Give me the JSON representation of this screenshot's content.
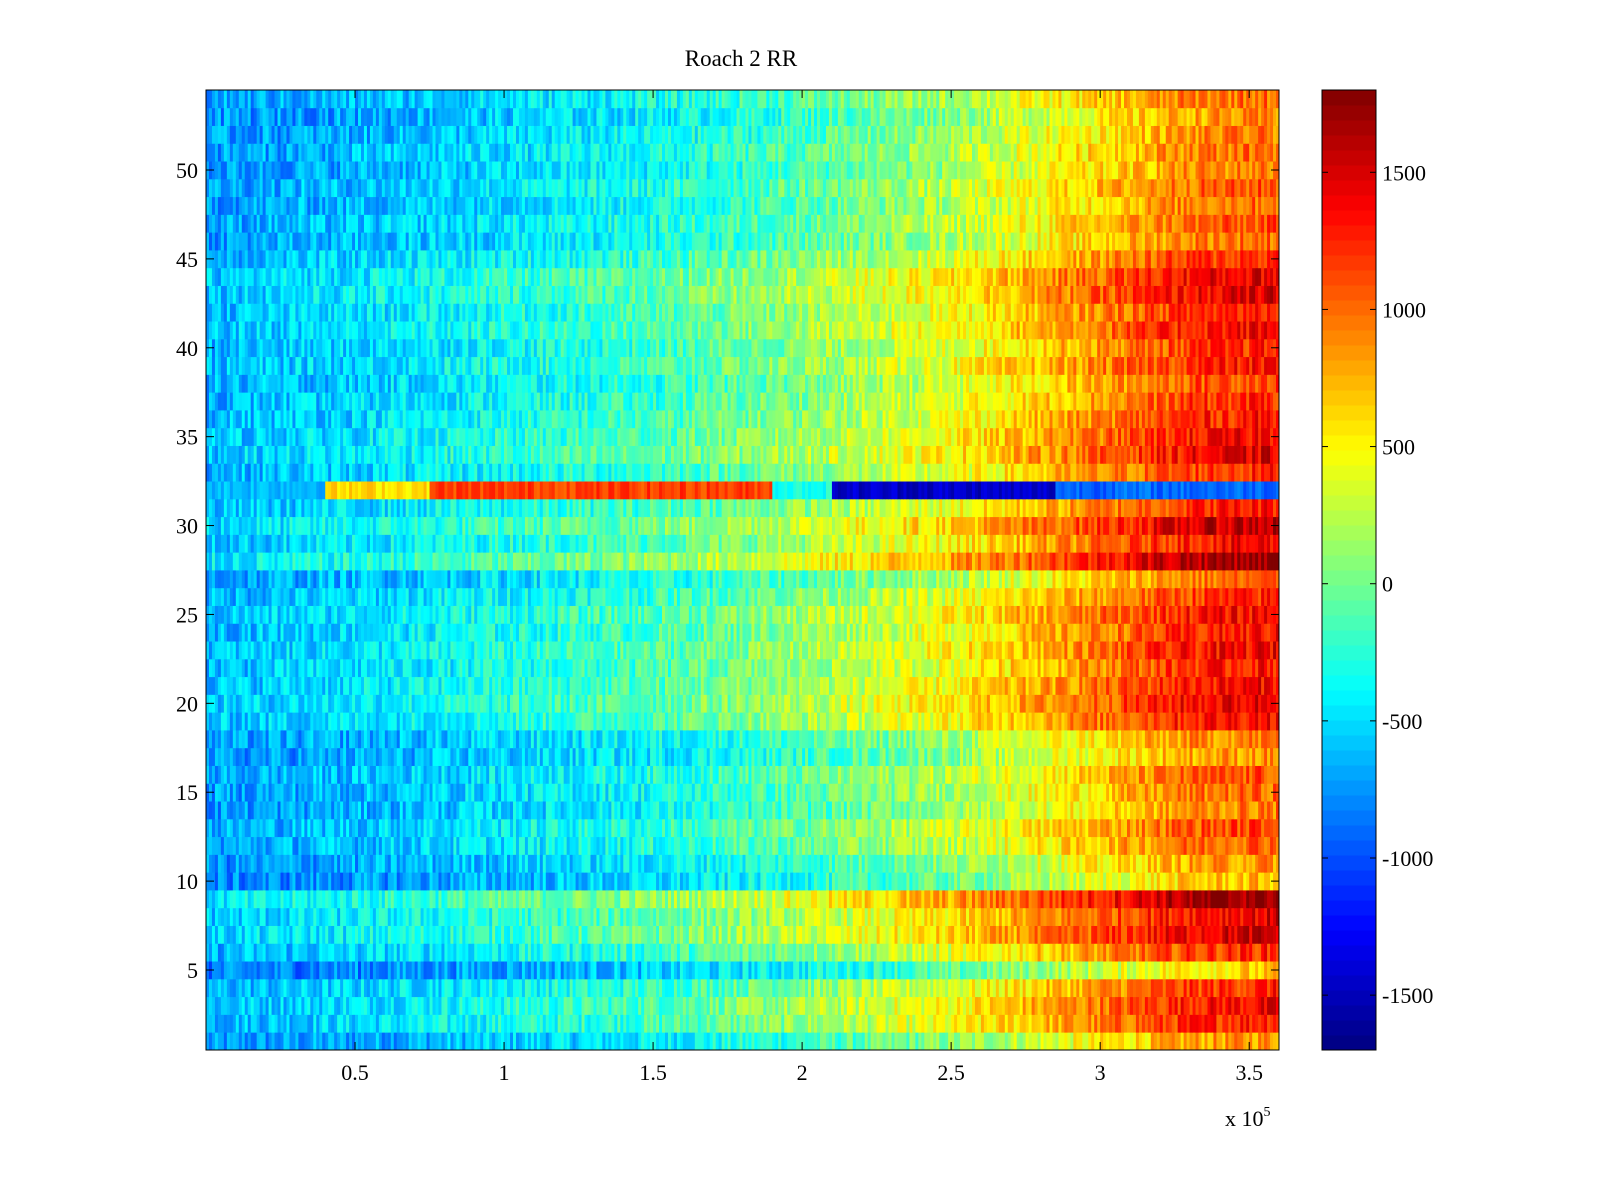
{
  "chart_data": {
    "type": "heatmap",
    "title": "Roach 2 RR",
    "xlabel": "",
    "ylabel": "",
    "x_exponent_label": "x 10",
    "x_exponent_sup": "5",
    "xlim": [
      0,
      3.6
    ],
    "ylim": [
      0.5,
      54.5
    ],
    "x_ticks": [
      0.5,
      1,
      1.5,
      2,
      2.5,
      3,
      3.5
    ],
    "x_tick_labels": [
      "0.5",
      "1",
      "1.5",
      "2",
      "2.5",
      "3",
      "3.5"
    ],
    "y_ticks": [
      5,
      10,
      15,
      20,
      25,
      30,
      35,
      40,
      45,
      50
    ],
    "y_tick_labels": [
      "5",
      "10",
      "15",
      "20",
      "25",
      "30",
      "35",
      "40",
      "45",
      "50"
    ],
    "rows": 54,
    "x_samples": 360,
    "colormap": "jet",
    "clim": [
      -1700,
      1800
    ],
    "colorbar": {
      "ticks": [
        -1500,
        -1000,
        -500,
        0,
        500,
        1000,
        1500
      ],
      "tick_labels": [
        "-1500",
        "-1000",
        "-500",
        "0",
        "500",
        "1000",
        "1500"
      ]
    },
    "trend_profile": {
      "x": [
        0,
        0.5,
        1,
        1.5,
        2,
        2.5,
        3,
        3.3,
        3.6
      ],
      "value": [
        -700,
        -600,
        -450,
        -300,
        -50,
        250,
        700,
        1000,
        1100
      ]
    },
    "row_offsets": [
      {
        "row": 1,
        "offset": -150
      },
      {
        "row": 2,
        "offset": 150
      },
      {
        "row": 3,
        "offset": 200
      },
      {
        "row": 4,
        "offset": 100
      },
      {
        "row": 5,
        "offset": -300
      },
      {
        "row": 6,
        "offset": 100
      },
      {
        "row": 7,
        "offset": 300
      },
      {
        "row": 8,
        "offset": 250
      },
      {
        "row": 9,
        "offset": 450
      },
      {
        "row": 10,
        "offset": -250
      },
      {
        "row": 11,
        "offset": -150
      },
      {
        "row": 12,
        "offset": 0
      },
      {
        "row": 13,
        "offset": 50
      },
      {
        "row": 14,
        "offset": -100
      },
      {
        "row": 15,
        "offset": -50
      },
      {
        "row": 16,
        "offset": 0
      },
      {
        "row": 17,
        "offset": -150
      },
      {
        "row": 18,
        "offset": -100
      },
      {
        "row": 19,
        "offset": 200
      },
      {
        "row": 20,
        "offset": 250
      },
      {
        "row": 21,
        "offset": 200
      },
      {
        "row": 22,
        "offset": 150
      },
      {
        "row": 23,
        "offset": 200
      },
      {
        "row": 24,
        "offset": 150
      },
      {
        "row": 25,
        "offset": 200
      },
      {
        "row": 26,
        "offset": 100
      },
      {
        "row": 27,
        "offset": -50
      },
      {
        "row": 28,
        "offset": 450
      },
      {
        "row": 29,
        "offset": 200
      },
      {
        "row": 30,
        "offset": 350
      },
      {
        "row": 31,
        "offset": 150
      },
      {
        "row": 33,
        "offset": 100
      },
      {
        "row": 34,
        "offset": 250
      },
      {
        "row": 35,
        "offset": 200
      },
      {
        "row": 36,
        "offset": 150
      },
      {
        "row": 37,
        "offset": 100
      },
      {
        "row": 38,
        "offset": 50
      },
      {
        "row": 39,
        "offset": 150
      },
      {
        "row": 40,
        "offset": 100
      },
      {
        "row": 41,
        "offset": 200
      },
      {
        "row": 42,
        "offset": 150
      },
      {
        "row": 43,
        "offset": 250
      },
      {
        "row": 44,
        "offset": 250
      },
      {
        "row": 45,
        "offset": 100
      },
      {
        "row": 46,
        "offset": -50
      },
      {
        "row": 47,
        "offset": 0
      },
      {
        "row": 48,
        "offset": -50
      },
      {
        "row": 49,
        "offset": 0
      },
      {
        "row": 50,
        "offset": -100
      },
      {
        "row": 51,
        "offset": -50
      },
      {
        "row": 52,
        "offset": -100
      },
      {
        "row": 53,
        "offset": -150
      },
      {
        "row": 54,
        "offset": -50
      }
    ],
    "anomaly_row": {
      "row": 32,
      "segments": [
        {
          "x_start": 0,
          "x_end": 0.4,
          "value": -600
        },
        {
          "x_start": 0.4,
          "x_end": 0.75,
          "value": 600
        },
        {
          "x_start": 0.75,
          "x_end": 1.9,
          "value": 1150
        },
        {
          "x_start": 1.9,
          "x_end": 2.1,
          "value": -300
        },
        {
          "x_start": 2.1,
          "x_end": 2.85,
          "value": -1450
        },
        {
          "x_start": 2.85,
          "x_end": 3.6,
          "value": -900
        }
      ]
    },
    "noise_amplitude": 250,
    "grid": false,
    "legend": "colorbar-right"
  }
}
